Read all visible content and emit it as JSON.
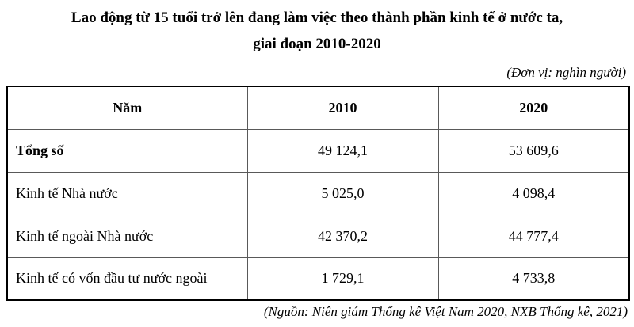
{
  "title": {
    "line1": "Lao động từ 15 tuổi trở lên đang làm việc theo thành phần kinh tế ở nước ta,",
    "line2": "giai đoạn 2010-2020"
  },
  "unit_note": "(Đơn vị: nghìn người)",
  "table": {
    "columns": [
      "Năm",
      "2010",
      "2020"
    ],
    "rows": [
      {
        "label": "Tổng số",
        "values": [
          "49 124,1",
          "53 609,6"
        ]
      },
      {
        "label": "Kinh tế Nhà nước",
        "values": [
          "5 025,0",
          "4 098,4"
        ]
      },
      {
        "label": "Kinh tế ngoài Nhà nước",
        "values": [
          "42 370,2",
          "44 777,4"
        ]
      },
      {
        "label": "Kinh tế có vốn đầu tư nước ngoài",
        "values": [
          "1 729,1",
          "4 733,8"
        ]
      }
    ]
  },
  "source_note": "(Nguồn: Niên giám Thống kê Việt Nam 2020, NXB Thống kê, 2021)",
  "colors": {
    "background": "#ffffff",
    "text": "#000000",
    "border_outer": "#000000",
    "border_inner": "#595959"
  }
}
